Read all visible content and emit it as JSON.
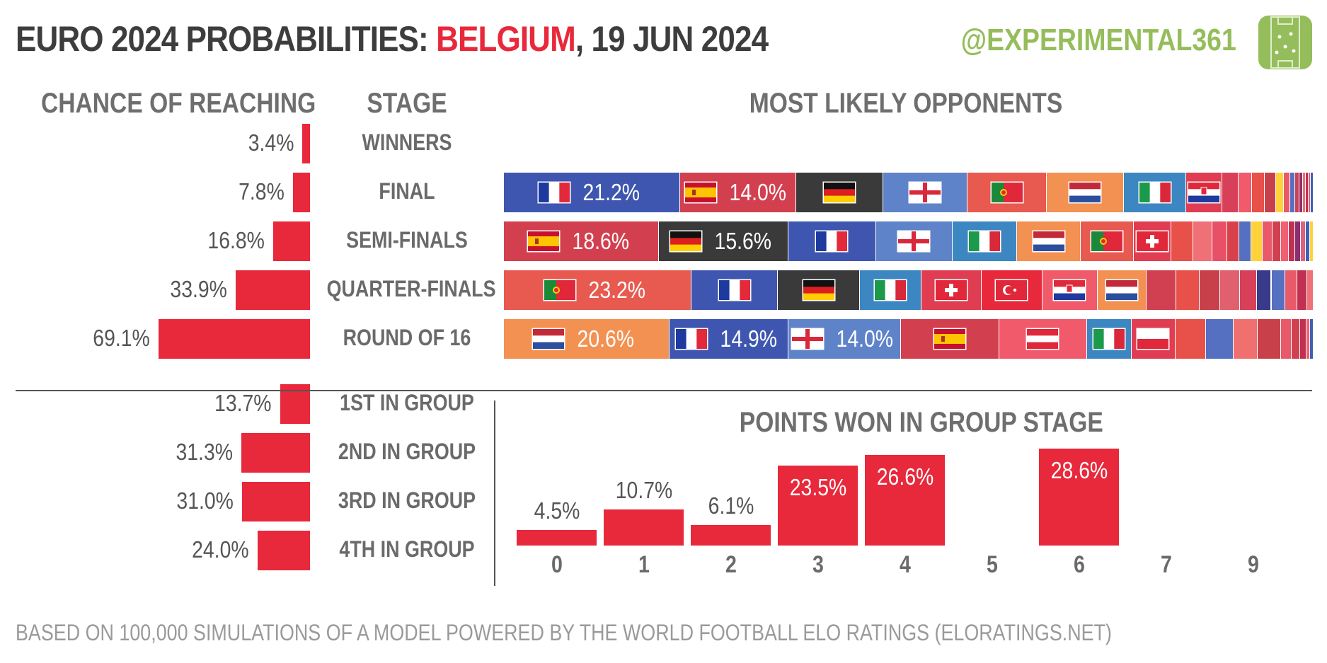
{
  "header": {
    "title_prefix": "EURO 2024 PROBABILITIES: ",
    "title_team": "BELGIUM",
    "title_suffix": ", 19 JUN 2024",
    "handle": "@EXPERIMENTAL361"
  },
  "columns": {
    "chance": "CHANCE OF REACHING",
    "stage": "STAGE",
    "opponents": "MOST LIKELY OPPONENTS"
  },
  "footer": "BASED ON 100,000 SIMULATIONS OF A MODEL POWERED BY THE WORLD FOOTBALL ELO RATINGS  (ELORATINGS.NET)",
  "colors": {
    "accent": "#e8283b",
    "brand": "#95bd5b",
    "text": "#555555"
  },
  "chart_data": [
    {
      "type": "bar",
      "title": "CHANCE OF REACHING",
      "categories": [
        "WINNERS",
        "FINAL",
        "SEMI-FINALS",
        "QUARTER-FINALS",
        "ROUND OF 16",
        "1ST IN GROUP",
        "2ND IN GROUP",
        "3RD IN GROUP",
        "4TH IN GROUP"
      ],
      "values": [
        3.4,
        7.8,
        16.8,
        33.9,
        69.1,
        13.7,
        31.3,
        31.0,
        24.0
      ],
      "labels": [
        "3.4%",
        "7.8%",
        "16.8%",
        "33.9%",
        "69.1%",
        "13.7%",
        "31.3%",
        "31.0%",
        "24.0%"
      ]
    },
    {
      "type": "bar",
      "title": "MOST LIKELY OPPONENTS",
      "stacked": true,
      "rows": [
        {
          "stage": "FINAL",
          "segments": [
            {
              "team": "France",
              "flag": "france",
              "value": 21.2,
              "label": "21.2%",
              "color": "#3f56b0"
            },
            {
              "team": "Spain",
              "flag": "spain",
              "value": 14.0,
              "label": "14.0%",
              "color": "#d2404f"
            },
            {
              "team": "Germany",
              "flag": "germany",
              "value": 10.5,
              "color": "#3a3a3a"
            },
            {
              "team": "England",
              "flag": "england",
              "value": 10.1,
              "color": "#5f83c9"
            },
            {
              "team": "Portugal",
              "flag": "portugal",
              "value": 9.6,
              "color": "#e85a4f"
            },
            {
              "team": "Netherlands",
              "flag": "netherlands",
              "value": 9.3,
              "color": "#f39152"
            },
            {
              "team": "Italy",
              "flag": "italy",
              "value": 7.5,
              "color": "#3c87c2"
            },
            {
              "team": "Croatia",
              "flag": "croatia",
              "value": 4.3,
              "color": "#e03d53"
            },
            {
              "value": 2.0,
              "color": "#d8405a"
            },
            {
              "value": 1.6,
              "color": "#f05a6a"
            },
            {
              "value": 1.5,
              "color": "#e8504a"
            },
            {
              "value": 1.4,
              "color": "#c8404a"
            },
            {
              "value": 0.9,
              "color": "#ffd23c"
            },
            {
              "value": 0.8,
              "color": "#e85a6a"
            },
            {
              "value": 0.6,
              "color": "#5570c0"
            },
            {
              "value": 0.5,
              "color": "#d04050"
            },
            {
              "value": 0.4,
              "color": "#8a3070"
            },
            {
              "value": 0.4,
              "color": "#f07070"
            },
            {
              "value": 0.3,
              "color": "#c03050"
            },
            {
              "value": 0.3,
              "color": "#e06080"
            },
            {
              "value": 0.3,
              "color": "#4060b0"
            }
          ]
        },
        {
          "stage": "SEMI-FINALS",
          "segments": [
            {
              "team": "Spain",
              "flag": "spain",
              "value": 18.6,
              "label": "18.6%",
              "color": "#d2404f"
            },
            {
              "team": "Germany",
              "flag": "germany",
              "value": 15.6,
              "label": "15.6%",
              "color": "#3a3a3a"
            },
            {
              "team": "France",
              "flag": "france",
              "value": 10.5,
              "color": "#3f56b0"
            },
            {
              "team": "England",
              "flag": "england",
              "value": 9.2,
              "color": "#5f83c9"
            },
            {
              "team": "Italy",
              "flag": "italy",
              "value": 7.8,
              "color": "#3c87c2"
            },
            {
              "team": "Netherlands",
              "flag": "netherlands",
              "value": 7.6,
              "color": "#f39152"
            },
            {
              "team": "Portugal",
              "flag": "portugal",
              "value": 6.4,
              "color": "#e85a4f"
            },
            {
              "team": "Switzerland",
              "flag": "switzerland",
              "value": 4.5,
              "color": "#e03d53"
            },
            {
              "value": 2.6,
              "color": "#e8504a"
            },
            {
              "value": 2.3,
              "color": "#f07078"
            },
            {
              "value": 1.8,
              "color": "#e85068"
            },
            {
              "value": 1.5,
              "color": "#d8404a"
            },
            {
              "value": 1.4,
              "color": "#5570c0"
            },
            {
              "value": 1.4,
              "color": "#ffd23c"
            },
            {
              "value": 1.2,
              "color": "#e85a6a"
            },
            {
              "value": 1.0,
              "color": "#d04050"
            },
            {
              "value": 0.9,
              "color": "#f06070"
            },
            {
              "value": 0.8,
              "color": "#c03050"
            },
            {
              "value": 0.7,
              "color": "#8a3070"
            },
            {
              "value": 0.6,
              "color": "#e06080"
            },
            {
              "value": 0.5,
              "color": "#4060b0"
            },
            {
              "value": 0.4,
              "color": "#ffd23c"
            }
          ]
        },
        {
          "stage": "QUARTER-FINALS",
          "segments": [
            {
              "team": "Portugal",
              "flag": "portugal",
              "value": 23.2,
              "label": "23.2%",
              "color": "#e85a4f"
            },
            {
              "team": "France",
              "flag": "france",
              "value": 10.6,
              "color": "#3f56b0"
            },
            {
              "team": "Germany",
              "flag": "germany",
              "value": 10.2,
              "color": "#3a3a3a"
            },
            {
              "team": "Italy",
              "flag": "italy",
              "value": 7.6,
              "color": "#3c87c2"
            },
            {
              "team": "Switzerland",
              "flag": "switzerland",
              "value": 7.4,
              "color": "#e03d53"
            },
            {
              "team": "Turkey",
              "flag": "turkey",
              "value": 7.5,
              "color": "#e8283b"
            },
            {
              "team": "Croatia",
              "flag": "croatia",
              "value": 6.8,
              "color": "#f05a6a"
            },
            {
              "team": "Netherlands",
              "flag": "netherlands",
              "value": 6.1,
              "color": "#f39152"
            },
            {
              "value": 3.6,
              "color": "#d04050"
            },
            {
              "value": 2.9,
              "color": "#e8504a"
            },
            {
              "value": 2.6,
              "color": "#c8404a"
            },
            {
              "value": 2.4,
              "color": "#e06070"
            },
            {
              "value": 2.1,
              "color": "#d8405a"
            },
            {
              "value": 1.8,
              "color": "#3a3a8a"
            },
            {
              "value": 1.7,
              "color": "#5570c0"
            },
            {
              "value": 1.5,
              "color": "#e85a6a"
            },
            {
              "value": 1.2,
              "color": "#c03050"
            },
            {
              "value": 0.8,
              "color": "#f07078"
            }
          ]
        },
        {
          "stage": "ROUND OF 16",
          "segments": [
            {
              "team": "Netherlands",
              "flag": "netherlands",
              "value": 20.6,
              "label": "20.6%",
              "color": "#f39152"
            },
            {
              "team": "France",
              "flag": "france",
              "value": 14.9,
              "label": "14.9%",
              "color": "#3f56b0"
            },
            {
              "team": "England",
              "flag": "england",
              "value": 14.0,
              "label": "14.0%",
              "color": "#5f83c9"
            },
            {
              "team": "Spain",
              "flag": "spain",
              "value": 12.2,
              "color": "#d2404f"
            },
            {
              "team": "Austria",
              "flag": "austria",
              "value": 11.0,
              "color": "#f05a6a"
            },
            {
              "team": "Italy",
              "flag": "italy",
              "value": 5.5,
              "color": "#3c87c2"
            },
            {
              "team": "Poland",
              "flag": "poland",
              "value": 5.5,
              "color": "#e03d53"
            },
            {
              "value": 3.8,
              "color": "#e8504a"
            },
            {
              "value": 3.4,
              "color": "#5570c0"
            },
            {
              "value": 3.0,
              "color": "#f07070"
            },
            {
              "value": 2.9,
              "color": "#c8404a"
            },
            {
              "value": 1.4,
              "color": "#e85a6a"
            },
            {
              "value": 1.0,
              "color": "#d04050"
            },
            {
              "value": 0.8,
              "color": "#c03050"
            },
            {
              "value": 0.5,
              "color": "#f06070"
            },
            {
              "value": 0.4,
              "color": "#4060b0"
            }
          ]
        }
      ]
    },
    {
      "type": "bar",
      "title": "POINTS WON IN GROUP STAGE",
      "categories": [
        "0",
        "1",
        "2",
        "3",
        "4",
        "5",
        "6",
        "7",
        "9"
      ],
      "values": [
        4.5,
        10.7,
        6.1,
        23.5,
        26.6,
        0,
        28.6,
        0,
        0
      ],
      "labels": [
        "4.5%",
        "10.7%",
        "6.1%",
        "23.5%",
        "26.6%",
        "",
        "28.6%",
        "",
        ""
      ]
    }
  ]
}
